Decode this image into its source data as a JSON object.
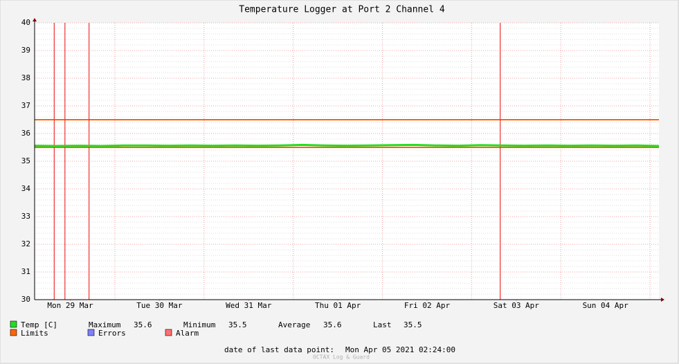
{
  "chart_data": {
    "type": "line",
    "title": "Temperature Logger at Port 2 Channel 4",
    "xlim": [
      0.1,
      7.1
    ],
    "xticks": [
      {
        "value": 0.5,
        "label": "Mon 29 Mar"
      },
      {
        "value": 1.5,
        "label": "Tue 30 Mar"
      },
      {
        "value": 2.5,
        "label": "Wed 31 Mar"
      },
      {
        "value": 3.5,
        "label": "Thu 01 Apr"
      },
      {
        "value": 4.5,
        "label": "Fri 02 Apr"
      },
      {
        "value": 5.5,
        "label": "Sat 03 Apr"
      },
      {
        "value": 6.5,
        "label": "Sun 04 Apr"
      }
    ],
    "xgrid": [
      1,
      2,
      3,
      4,
      5,
      6,
      7
    ],
    "ylim": [
      30,
      40
    ],
    "yticks": [
      30,
      31,
      32,
      33,
      34,
      35,
      36,
      37,
      38,
      39,
      40
    ],
    "yminorticks": [
      30.2,
      30.4,
      30.6,
      30.8,
      31.2,
      31.4,
      31.6,
      31.8,
      32.2,
      32.4,
      32.6,
      32.8,
      33.2,
      33.4,
      33.6,
      33.8,
      34.2,
      34.4,
      34.6,
      34.8,
      35.2,
      35.4,
      35.6,
      35.8,
      36.2,
      36.4,
      36.6,
      36.8,
      37.2,
      37.4,
      37.6,
      37.8,
      38.2,
      38.4,
      38.6,
      38.8,
      39.2,
      39.4,
      39.6,
      39.8
    ],
    "grid": true,
    "series": [
      {
        "name": "Temp [C]",
        "color": "#22dd22",
        "x": [
          0.1,
          0.35,
          0.6,
          0.85,
          1.1,
          1.35,
          1.6,
          1.85,
          2.1,
          2.35,
          2.6,
          2.85,
          3.1,
          3.35,
          3.6,
          3.85,
          4.1,
          4.35,
          4.6,
          4.85,
          5.1,
          5.35,
          5.6,
          5.85,
          6.1,
          6.35,
          6.6,
          6.85,
          7.1
        ],
        "values": [
          35.56,
          35.55,
          35.56,
          35.55,
          35.57,
          35.57,
          35.56,
          35.57,
          35.56,
          35.57,
          35.56,
          35.57,
          35.59,
          35.57,
          35.56,
          35.57,
          35.58,
          35.59,
          35.57,
          35.56,
          35.58,
          35.57,
          35.56,
          35.57,
          35.56,
          35.57,
          35.56,
          35.57,
          35.55
        ]
      }
    ],
    "limits": {
      "name": "Limits",
      "color": "#ff6600",
      "values": [
        36.5,
        35.5
      ]
    },
    "errors": {
      "name": "Errors",
      "color": "#7f7fff"
    },
    "alarms": {
      "name": "Alarm",
      "color": "#ff7070",
      "line_color": "#ee3030",
      "x": [
        0.32,
        0.44,
        0.71,
        5.32
      ]
    },
    "legend_stats": [
      {
        "label": "Maximum",
        "value": 35.6
      },
      {
        "label": "Minimum",
        "value": 35.5
      },
      {
        "label": "Average",
        "value": 35.6
      },
      {
        "label": "Last",
        "value": 35.5
      }
    ],
    "footer": {
      "label": "date of last data point:",
      "value": "Mon Apr 05 2021 02:24:00"
    },
    "watermark": "OCTAX Log & Guard"
  }
}
